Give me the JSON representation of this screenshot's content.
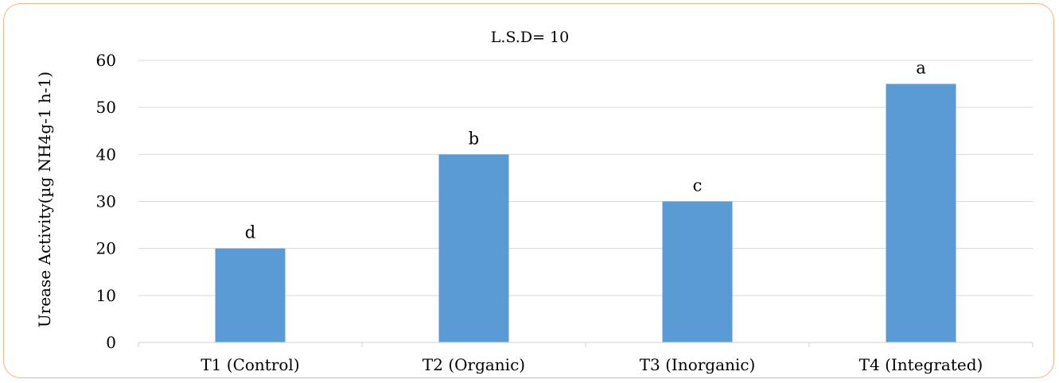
{
  "chart_data": {
    "type": "bar",
    "title": "L.S.D= 10",
    "ylabel": "Urease Activity(µg NH4g-1 h-1)",
    "xlabel": "",
    "categories": [
      "T1 (Control)",
      "T2 (Organic)",
      "T3 (Inorganic)",
      "T4 (Integrated)"
    ],
    "values": [
      20,
      40,
      30,
      55
    ],
    "bar_labels": [
      "d",
      "b",
      "c",
      "a"
    ],
    "ylim": [
      0,
      60
    ],
    "yticks": [
      "0",
      "10",
      "20",
      "30",
      "40",
      "50",
      "60"
    ],
    "grid": true,
    "bar_color": "#5b9bd5",
    "grid_color": "#d9d9d9",
    "border_color": "#f0b487"
  }
}
